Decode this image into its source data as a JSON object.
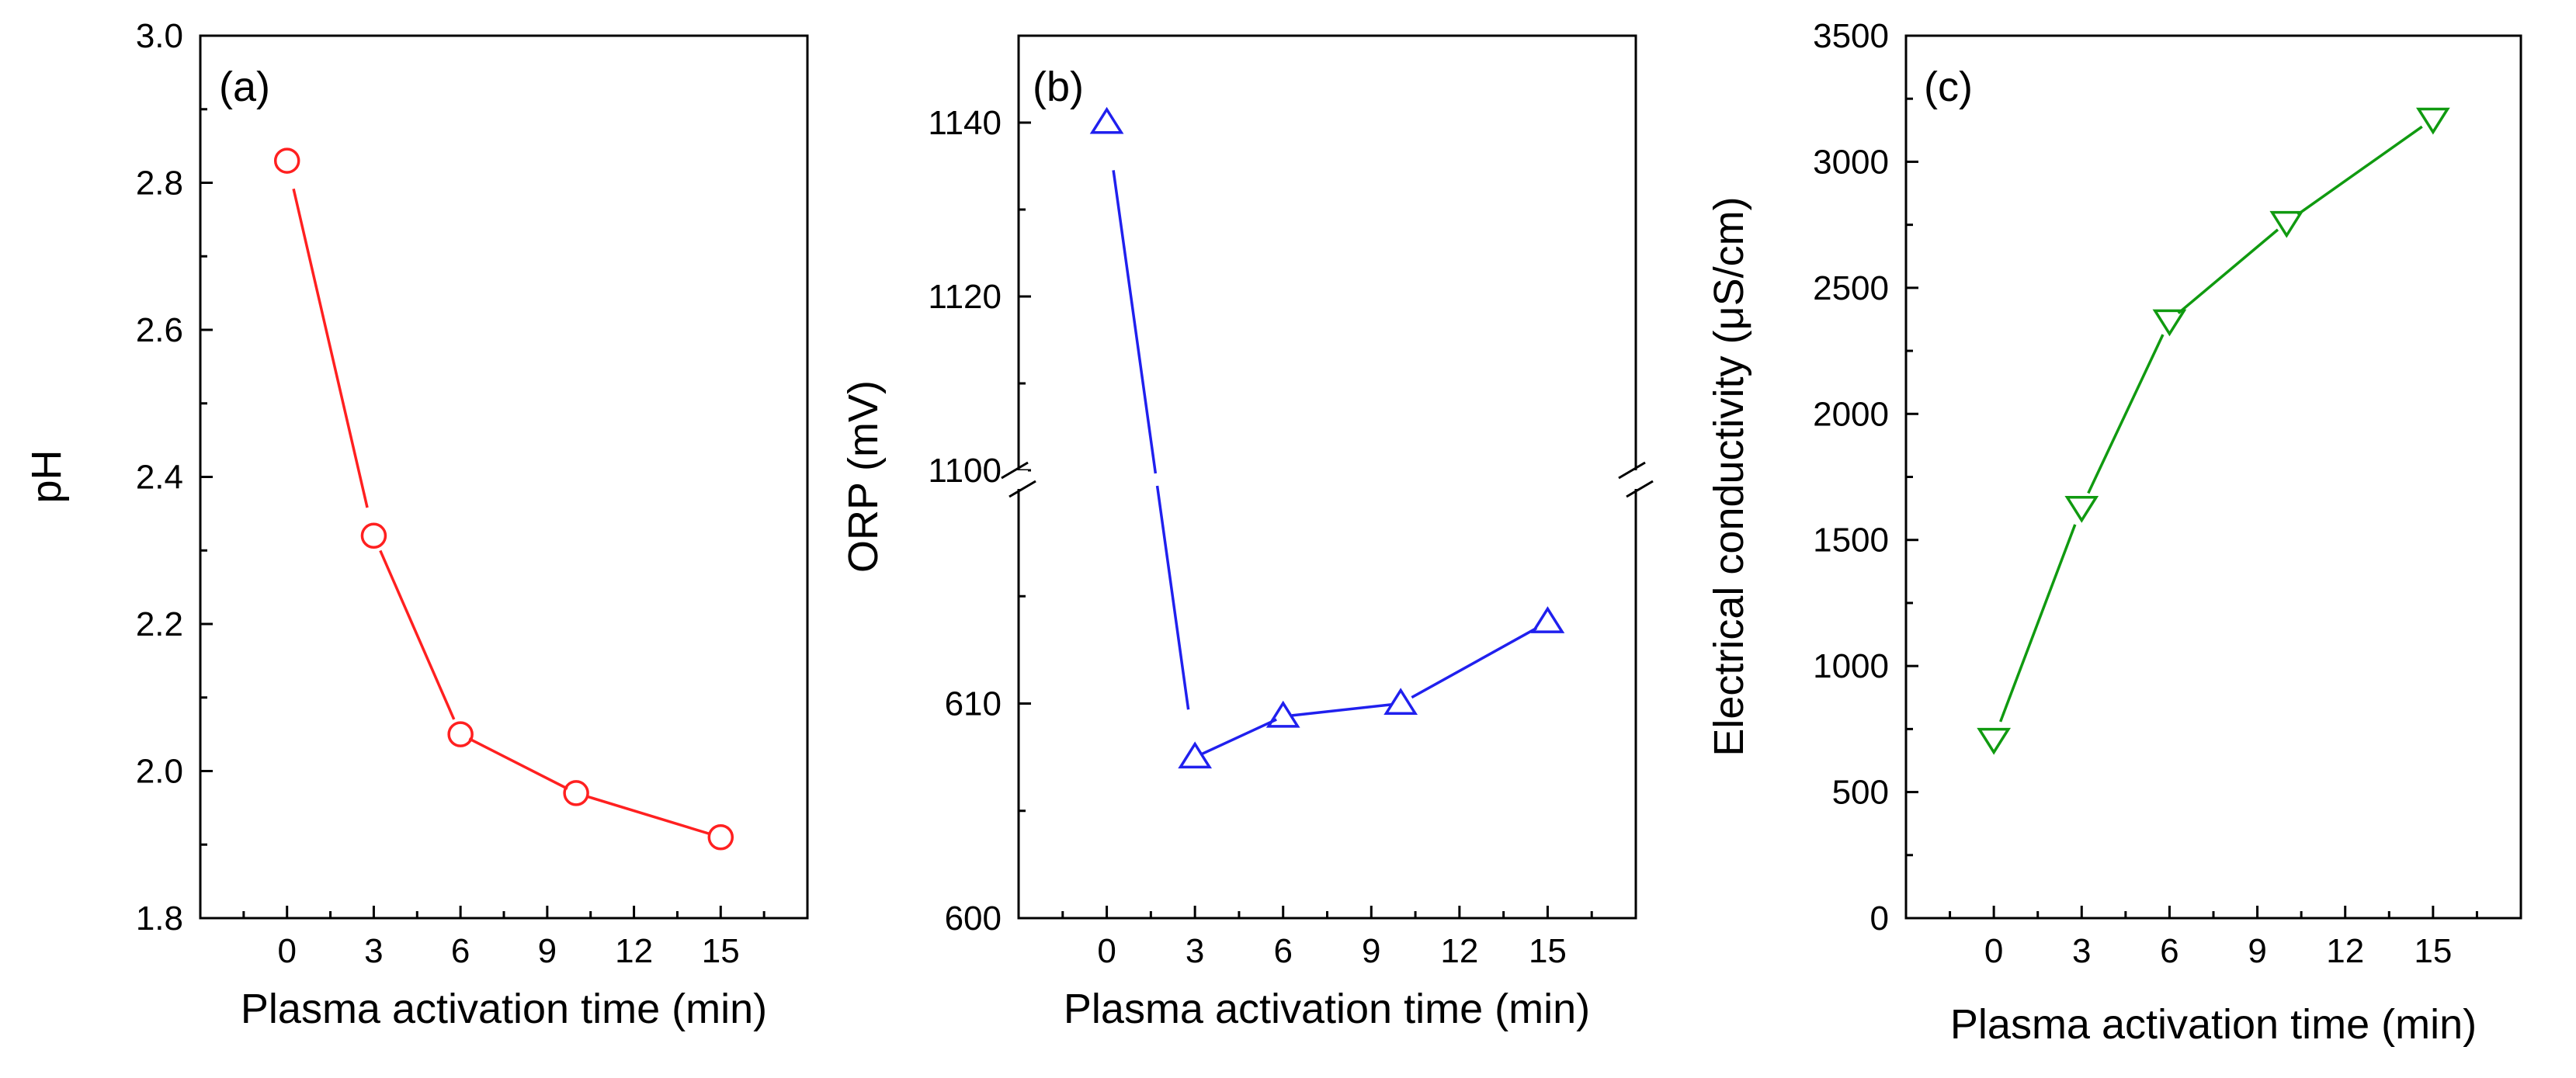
{
  "chart_data": [
    {
      "type": "line",
      "panel_label": "(a)",
      "xlabel": "Plasma activation time (min)",
      "ylabel": "pH",
      "xlim": [
        -3,
        18
      ],
      "ylim": [
        1.8,
        3.0
      ],
      "xticks": [
        "0",
        "3",
        "6",
        "9",
        "12",
        "15"
      ],
      "yticks": [
        "1.8",
        "2.0",
        "2.2",
        "2.4",
        "2.6",
        "2.8",
        "3.0"
      ],
      "grid": false,
      "marker": "circle",
      "color": "#ff2020",
      "series": [
        {
          "x": [
            0,
            3,
            6,
            10,
            15
          ],
          "values": [
            2.83,
            2.32,
            2.05,
            1.97,
            1.91
          ]
        }
      ]
    },
    {
      "type": "line",
      "panel_label": "(b)",
      "xlabel": "Plasma activation time (min)",
      "ylabel": "ORP (mV)",
      "xlim": [
        -3,
        18
      ],
      "ylim": [
        600,
        1150
      ],
      "axis_break": {
        "lower_range": [
          600,
          620
        ],
        "upper_range": [
          1100,
          1150
        ]
      },
      "xticks": [
        "0",
        "3",
        "6",
        "9",
        "12",
        "15"
      ],
      "yticks": [
        "600",
        "610",
        "1100",
        "1120",
        "1140"
      ],
      "grid": false,
      "marker": "triangle-up",
      "color": "#2020ee",
      "series": [
        {
          "x": [
            0,
            3,
            6,
            10,
            15
          ],
          "values": [
            1140,
            607.5,
            609.4,
            610.0,
            613.8
          ]
        }
      ]
    },
    {
      "type": "line",
      "panel_label": "(c)",
      "xlabel": "Plasma activation time (min)",
      "ylabel": "Electrical conductivity (μS/cm)",
      "xlim": [
        -3,
        18
      ],
      "ylim": [
        0,
        3500
      ],
      "xticks": [
        "0",
        "3",
        "6",
        "9",
        "12",
        "15"
      ],
      "yticks": [
        "0",
        "500",
        "1000",
        "1500",
        "2000",
        "2500",
        "3000",
        "3500"
      ],
      "grid": false,
      "marker": "triangle-down",
      "color": "#109a10",
      "series": [
        {
          "x": [
            0,
            3,
            6,
            10,
            15
          ],
          "values": [
            710,
            1630,
            2370,
            2760,
            3170
          ]
        }
      ]
    }
  ]
}
